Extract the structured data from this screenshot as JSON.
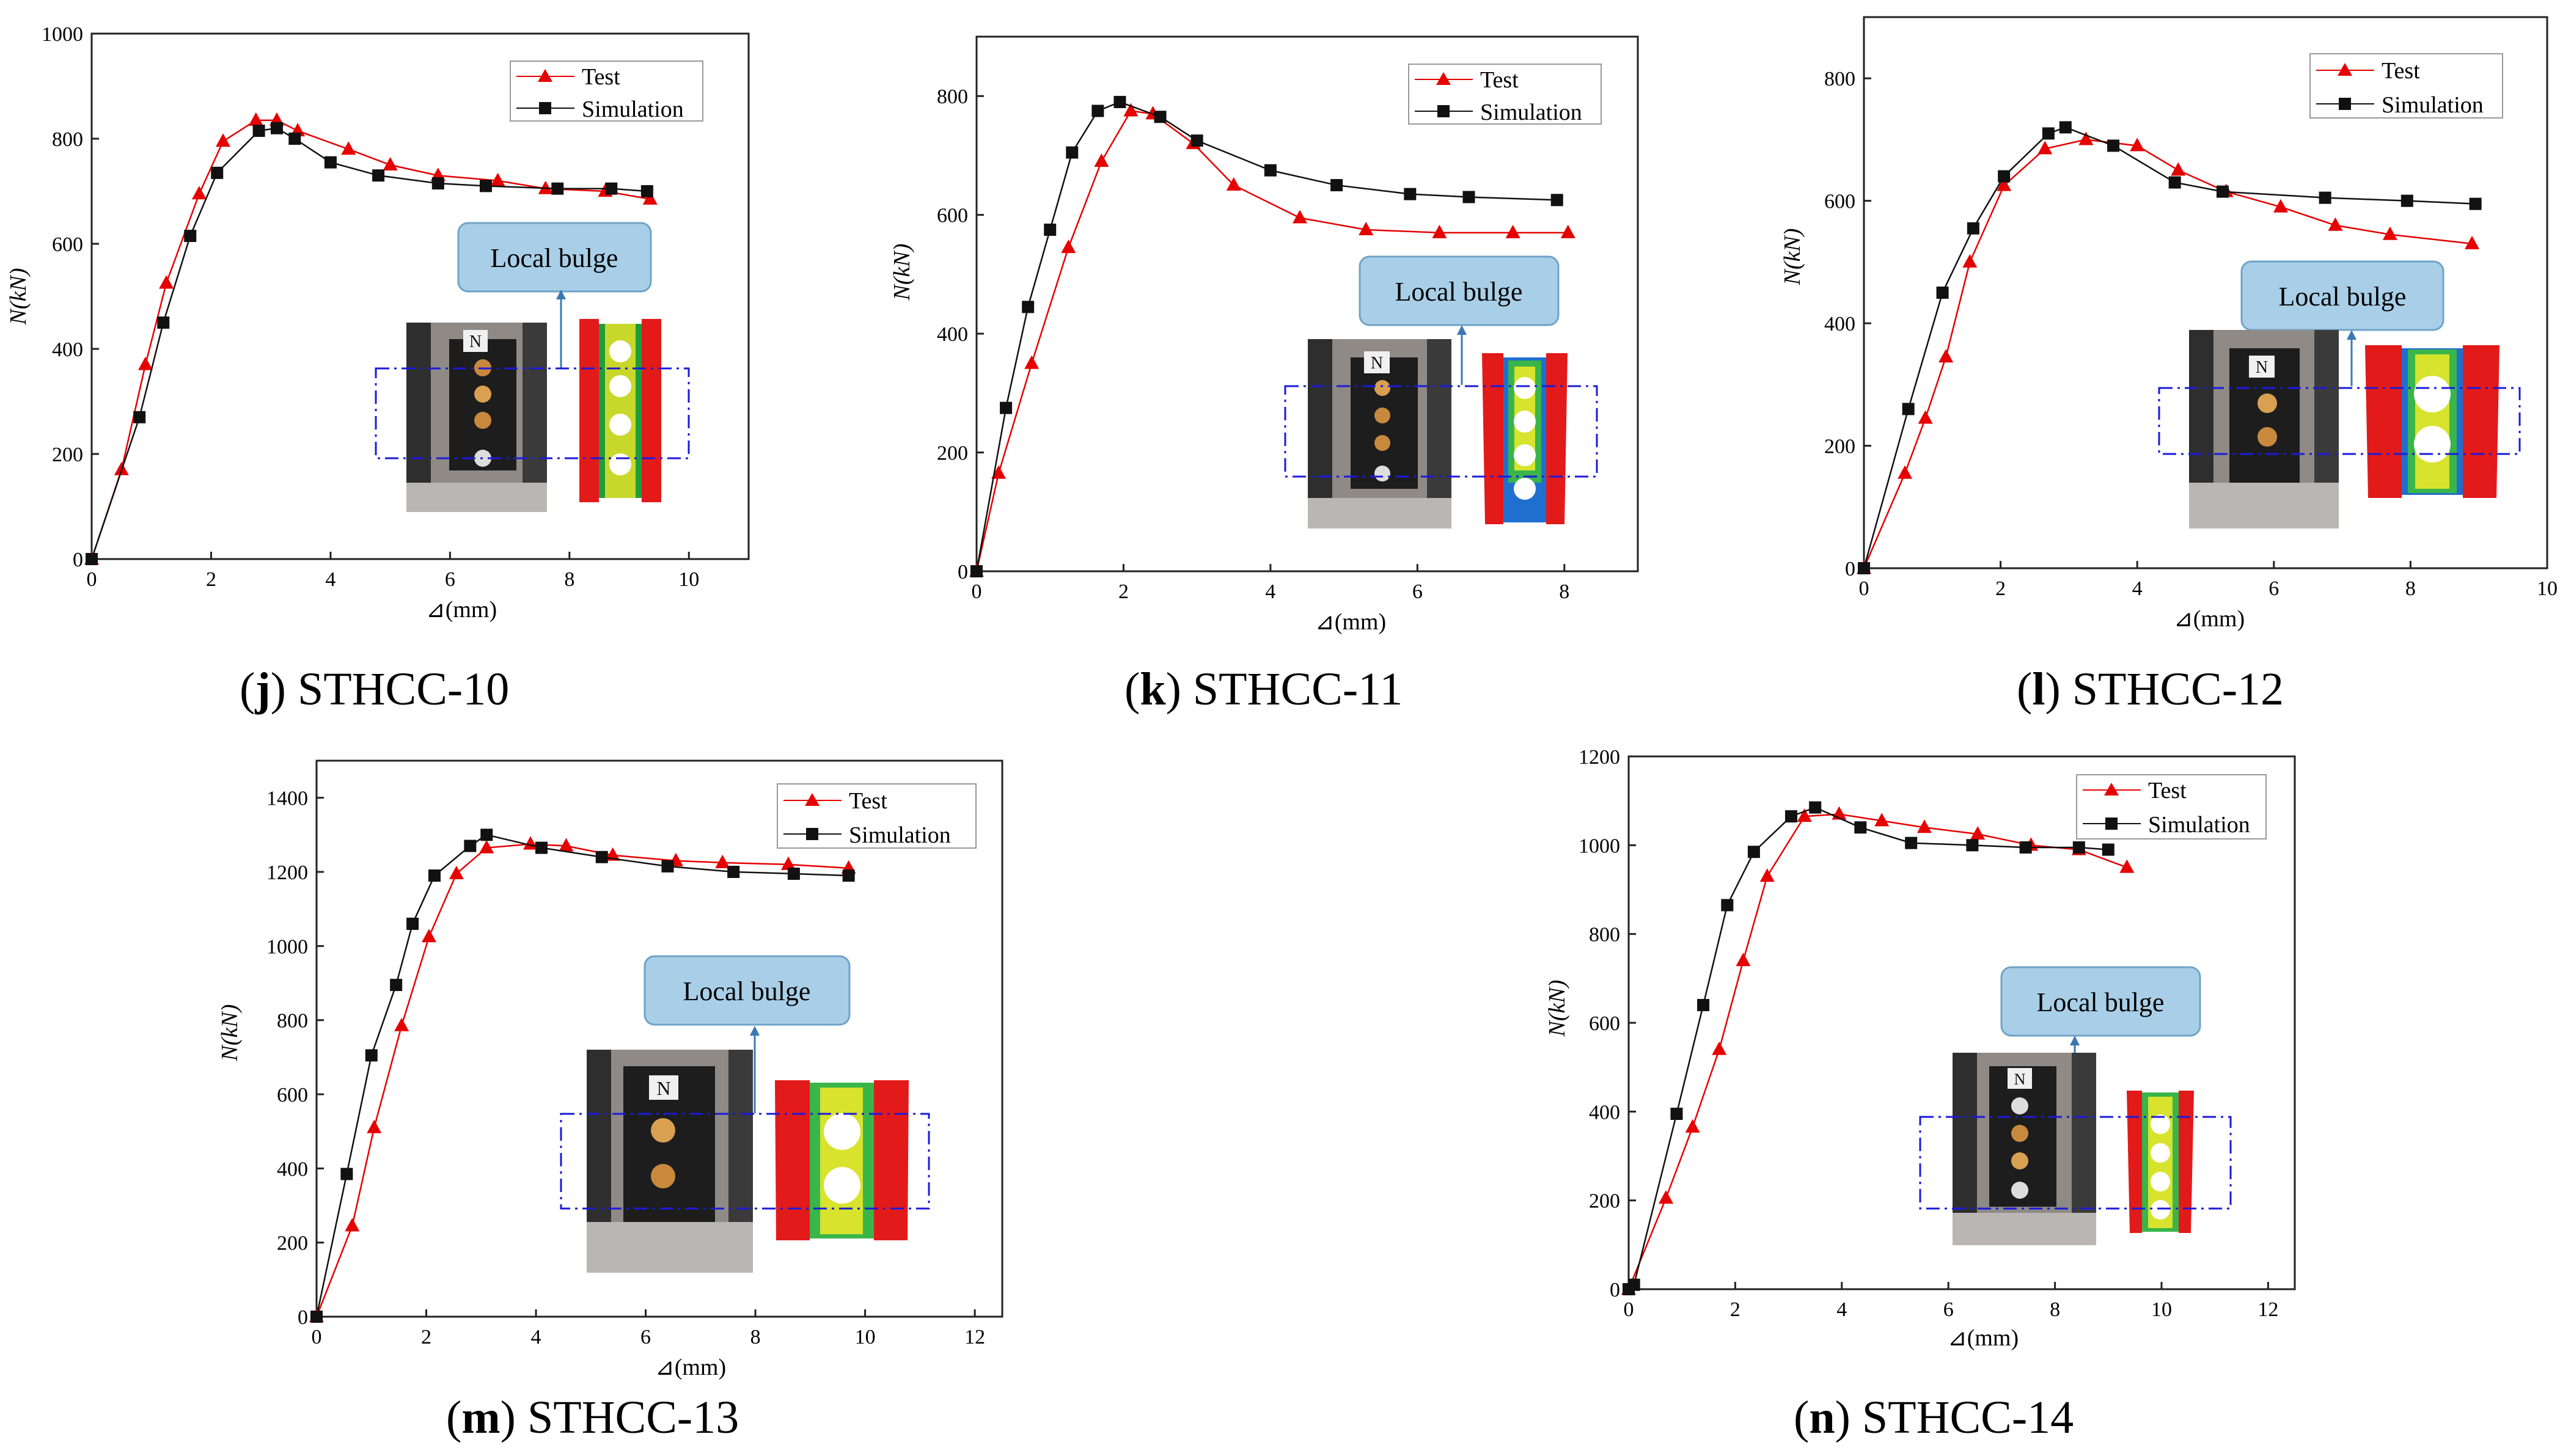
{
  "figure": {
    "y_axis_label": "N(kN)",
    "x_axis_label": "⊿(mm)",
    "annotation_label": "Local bulge",
    "colors": {
      "test": "#e60000",
      "simulation": "#111111",
      "callout_fill": "#a9cfe8",
      "callout_stroke": "#6fa3c7",
      "arrow": "#3a78b5",
      "dashed_box": "#1a1adc"
    }
  },
  "chart_data": [
    {
      "id": "j",
      "type": "line",
      "letter": "j",
      "caption": "STHCC-10",
      "xlabel": "⊿(mm)",
      "ylabel": "N(kN)",
      "xlim": [
        0,
        11
      ],
      "ylim": [
        0,
        1000
      ],
      "xticks": [
        0,
        2,
        4,
        6,
        8,
        10
      ],
      "yticks": [
        0,
        200,
        400,
        600,
        800,
        1000
      ],
      "legend": [
        "Test",
        "Simulation"
      ],
      "series": [
        {
          "name": "Test",
          "marker": "triangle",
          "x": [
            0,
            0.5,
            0.9,
            1.25,
            1.8,
            2.2,
            2.75,
            3.1,
            3.45,
            4.3,
            5.0,
            5.8,
            6.8,
            7.6,
            8.6,
            9.35
          ],
          "y": [
            0,
            170,
            370,
            525,
            695,
            795,
            835,
            835,
            815,
            780,
            750,
            730,
            720,
            705,
            700,
            685
          ]
        },
        {
          "name": "Simulation",
          "marker": "square",
          "x": [
            0,
            0.8,
            1.2,
            1.65,
            2.1,
            2.8,
            3.1,
            3.4,
            4.0,
            4.8,
            5.8,
            6.6,
            7.8,
            8.7,
            9.3
          ],
          "y": [
            0,
            270,
            450,
            615,
            735,
            815,
            820,
            800,
            755,
            730,
            715,
            710,
            705,
            705,
            700
          ]
        }
      ]
    },
    {
      "id": "k",
      "type": "line",
      "letter": "k",
      "caption": "STHCC-11",
      "xlabel": "⊿(mm)",
      "ylabel": "N(kN)",
      "xlim": [
        0,
        9
      ],
      "ylim": [
        0,
        900
      ],
      "xticks": [
        0,
        2,
        4,
        6,
        8
      ],
      "yticks": [
        0,
        200,
        400,
        600,
        800
      ],
      "legend": [
        "Test",
        "Simulation"
      ],
      "series": [
        {
          "name": "Test",
          "marker": "triangle",
          "x": [
            0,
            0.3,
            0.75,
            1.25,
            1.7,
            2.1,
            2.4,
            2.95,
            3.5,
            4.4,
            5.3,
            6.3,
            7.3,
            8.05
          ],
          "y": [
            0,
            165,
            350,
            545,
            690,
            775,
            770,
            720,
            650,
            595,
            575,
            570,
            570,
            570
          ]
        },
        {
          "name": "Simulation",
          "marker": "square",
          "x": [
            0,
            0.4,
            0.7,
            1.0,
            1.3,
            1.65,
            1.95,
            2.5,
            3.0,
            4.0,
            4.9,
            5.9,
            6.7,
            7.9
          ],
          "y": [
            0,
            275,
            445,
            575,
            705,
            775,
            790,
            765,
            725,
            675,
            650,
            635,
            630,
            625
          ]
        }
      ]
    },
    {
      "id": "l",
      "type": "line",
      "letter": "l",
      "caption": "STHCC-12",
      "xlabel": "⊿(mm)",
      "ylabel": "N(kN)",
      "xlim": [
        0,
        10
      ],
      "ylim": [
        0,
        900
      ],
      "xticks": [
        0,
        2,
        4,
        6,
        8,
        10
      ],
      "yticks": [
        0,
        200,
        400,
        600,
        800
      ],
      "legend": [
        "Test",
        "Simulation"
      ],
      "series": [
        {
          "name": "Test",
          "marker": "triangle",
          "x": [
            0,
            0.6,
            0.9,
            1.2,
            1.55,
            2.05,
            2.65,
            3.25,
            4.0,
            4.6,
            5.3,
            6.1,
            6.9,
            7.7,
            8.9
          ],
          "y": [
            0,
            155,
            245,
            345,
            500,
            625,
            685,
            700,
            690,
            650,
            615,
            590,
            560,
            545,
            530
          ]
        },
        {
          "name": "Simulation",
          "marker": "square",
          "x": [
            0,
            0.65,
            1.15,
            1.6,
            2.05,
            2.7,
            2.95,
            3.65,
            4.55,
            5.25,
            6.75,
            7.95,
            8.95
          ],
          "y": [
            0,
            260,
            450,
            555,
            640,
            710,
            720,
            690,
            630,
            615,
            605,
            600,
            595
          ]
        }
      ]
    },
    {
      "id": "m",
      "type": "line",
      "letter": "m",
      "caption": "STHCC-13",
      "xlabel": "⊿(mm)",
      "ylabel": "N(kN)",
      "xlim": [
        0,
        12.5
      ],
      "ylim": [
        0,
        1500
      ],
      "xticks": [
        0,
        2,
        4,
        6,
        8,
        10,
        12
      ],
      "yticks": [
        0,
        200,
        400,
        600,
        800,
        1000,
        1200,
        1400
      ],
      "legend": [
        "Test",
        "Simulation"
      ],
      "series": [
        {
          "name": "Test",
          "marker": "triangle",
          "x": [
            0,
            0.65,
            1.05,
            1.55,
            2.05,
            2.55,
            3.1,
            3.9,
            4.55,
            5.4,
            6.55,
            7.4,
            8.6,
            9.7
          ],
          "y": [
            0,
            245,
            510,
            785,
            1025,
            1195,
            1265,
            1275,
            1270,
            1245,
            1230,
            1225,
            1220,
            1210
          ]
        },
        {
          "name": "Simulation",
          "marker": "square",
          "x": [
            0,
            0.55,
            1.0,
            1.45,
            1.75,
            2.15,
            2.8,
            3.1,
            4.1,
            5.2,
            6.4,
            7.6,
            8.7,
            9.7
          ],
          "y": [
            0,
            385,
            705,
            895,
            1060,
            1190,
            1270,
            1300,
            1265,
            1240,
            1215,
            1200,
            1195,
            1190
          ]
        }
      ]
    },
    {
      "id": "n",
      "type": "line",
      "letter": "n",
      "caption": "STHCC-14",
      "xlabel": "⊿(mm)",
      "ylabel": "N(kN)",
      "xlim": [
        0,
        12.5
      ],
      "ylim": [
        0,
        1200
      ],
      "xticks": [
        0,
        2,
        4,
        6,
        8,
        10,
        12
      ],
      "yticks": [
        0,
        200,
        400,
        600,
        800,
        1000,
        1200
      ],
      "legend": [
        "Test",
        "Simulation"
      ],
      "series": [
        {
          "name": "Test",
          "marker": "triangle",
          "x": [
            0,
            0.7,
            1.2,
            1.7,
            2.15,
            2.6,
            3.3,
            3.95,
            4.75,
            5.55,
            6.55,
            7.55,
            8.45,
            9.35
          ],
          "y": [
            0,
            205,
            365,
            540,
            740,
            930,
            1065,
            1070,
            1055,
            1040,
            1025,
            1000,
            990,
            950
          ]
        },
        {
          "name": "Simulation",
          "marker": "square",
          "x": [
            0,
            0.1,
            0.9,
            1.4,
            1.85,
            2.35,
            3.05,
            3.5,
            4.35,
            5.3,
            6.45,
            7.45,
            8.45,
            9.0
          ],
          "y": [
            0,
            10,
            395,
            640,
            865,
            985,
            1065,
            1085,
            1040,
            1005,
            1000,
            995,
            995,
            990
          ]
        }
      ]
    }
  ]
}
